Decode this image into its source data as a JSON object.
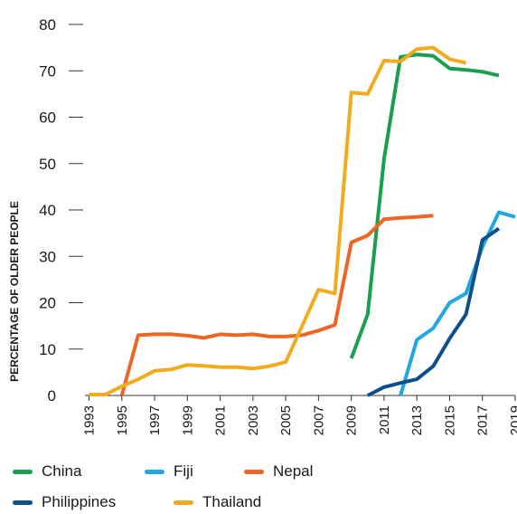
{
  "chart_data": {
    "type": "line",
    "ylabel": "PERCENTAGE OF OLDER PEOPLE",
    "xlabel": "",
    "ylim": [
      0,
      80
    ],
    "y_ticks": [
      0,
      10,
      20,
      30,
      40,
      50,
      60,
      70,
      80
    ],
    "x_ticks": [
      "1993",
      "1995",
      "1997",
      "1999",
      "2001",
      "2003",
      "2005",
      "2007",
      "2009",
      "2011",
      "2013",
      "2015",
      "2017",
      "2019"
    ],
    "legend_position": "bottom",
    "grid": false,
    "series": [
      {
        "name": "China",
        "color": "#1a9e4f",
        "points": [
          [
            2009,
            8
          ],
          [
            2010,
            17.5
          ],
          [
            2011,
            51
          ],
          [
            2012,
            73
          ],
          [
            2013,
            73.5
          ],
          [
            2014,
            73.2
          ],
          [
            2015,
            70.5
          ],
          [
            2016,
            70.2
          ],
          [
            2017,
            69.8
          ],
          [
            2018,
            69
          ]
        ]
      },
      {
        "name": "Fiji",
        "color": "#21a8e0",
        "points": [
          [
            2012,
            0
          ],
          [
            2013,
            12
          ],
          [
            2014,
            14.5
          ],
          [
            2015,
            20
          ],
          [
            2016,
            22
          ],
          [
            2017,
            32
          ],
          [
            2018,
            39.5
          ],
          [
            2019,
            38.5
          ]
        ]
      },
      {
        "name": "Nepal",
        "color": "#ee6524",
        "points": [
          [
            1995,
            0
          ],
          [
            1996,
            13
          ],
          [
            1997,
            13.2
          ],
          [
            1998,
            13.2
          ],
          [
            1999,
            12.9
          ],
          [
            2000,
            12.4
          ],
          [
            2001,
            13.2
          ],
          [
            2002,
            13
          ],
          [
            2003,
            13.2
          ],
          [
            2004,
            12.7
          ],
          [
            2005,
            12.7
          ],
          [
            2006,
            13
          ],
          [
            2007,
            14
          ],
          [
            2008,
            15.2
          ],
          [
            2009,
            33
          ],
          [
            2010,
            34.5
          ],
          [
            2011,
            38
          ],
          [
            2012,
            38.3
          ],
          [
            2013,
            38.5
          ],
          [
            2014,
            38.8
          ]
        ]
      },
      {
        "name": "Philippines",
        "color": "#0d4f8c",
        "points": [
          [
            2010,
            0
          ],
          [
            2011,
            1.8
          ],
          [
            2012,
            2.7
          ],
          [
            2013,
            3.5
          ],
          [
            2014,
            6.3
          ],
          [
            2015,
            12.3
          ],
          [
            2016,
            17.5
          ],
          [
            2017,
            33.5
          ],
          [
            2018,
            36
          ]
        ]
      },
      {
        "name": "Thailand",
        "color": "#f0ab1f",
        "points": [
          [
            1993,
            0.2
          ],
          [
            1994,
            0.2
          ],
          [
            1995,
            2
          ],
          [
            1996,
            3.5
          ],
          [
            1997,
            5.3
          ],
          [
            1998,
            5.6
          ],
          [
            1999,
            6.6
          ],
          [
            2000,
            6.4
          ],
          [
            2001,
            6.1
          ],
          [
            2002,
            6.1
          ],
          [
            2003,
            5.8
          ],
          [
            2004,
            6.3
          ],
          [
            2005,
            7.2
          ],
          [
            2006,
            15
          ],
          [
            2007,
            22.8
          ],
          [
            2008,
            22
          ],
          [
            2009,
            65.3
          ],
          [
            2010,
            65
          ],
          [
            2011,
            72.2
          ],
          [
            2012,
            72
          ],
          [
            2013,
            74.7
          ],
          [
            2014,
            75
          ],
          [
            2015,
            72.5
          ],
          [
            2016,
            71.7
          ]
        ]
      }
    ]
  }
}
